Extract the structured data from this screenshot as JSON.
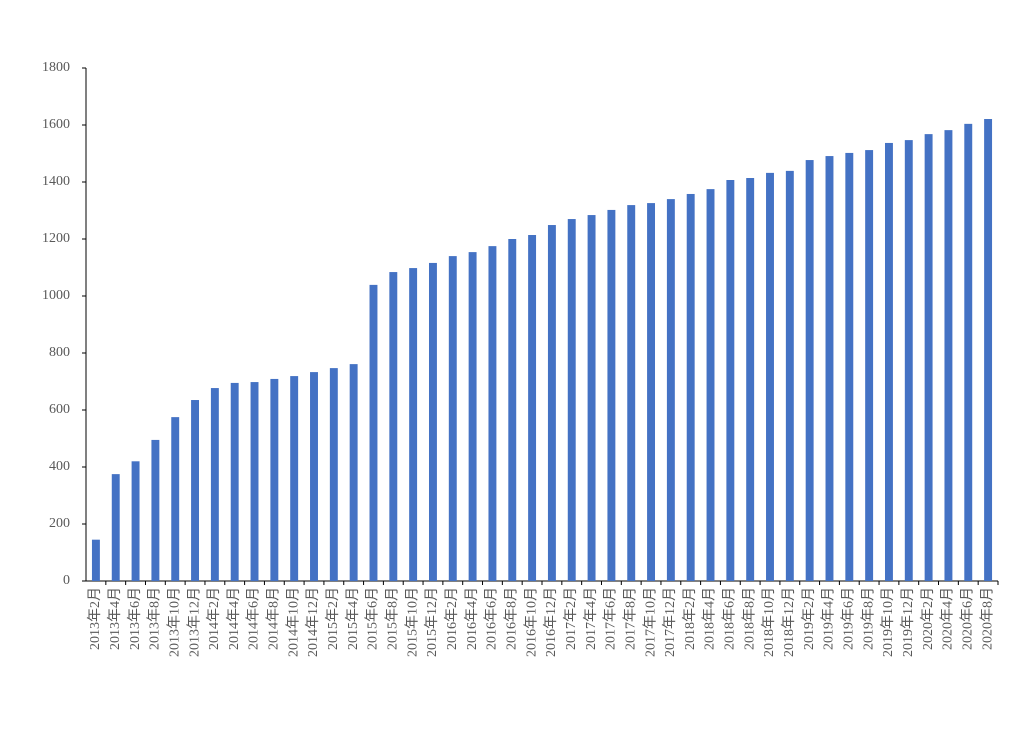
{
  "chart_data": {
    "type": "bar",
    "categories": [
      "2013年2月",
      "2013年4月",
      "2013年6月",
      "2013年8月",
      "2013年10月",
      "2013年12月",
      "2014年2月",
      "2014年4月",
      "2014年6月",
      "2014年8月",
      "2014年10月",
      "2014年12月",
      "2015年2月",
      "2015年4月",
      "2015年6月",
      "2015年8月",
      "2015年10月",
      "2015年12月",
      "2016年2月",
      "2016年4月",
      "2016年6月",
      "2016年8月",
      "2016年10月",
      "2016年12月",
      "2017年2月",
      "2017年4月",
      "2017年6月",
      "2017年8月",
      "2017年10月",
      "2017年12月",
      "2018年2月",
      "2018年4月",
      "2018年6月",
      "2018年8月",
      "2018年10月",
      "2018年12月",
      "2019年2月",
      "2019年4月",
      "2019年6月",
      "2019年8月",
      "2019年10月",
      "2019年12月",
      "2020年2月",
      "2020年4月",
      "2020年6月",
      "2020年8月"
    ],
    "values": [
      145,
      375,
      420,
      495,
      575,
      635,
      677,
      695,
      698,
      709,
      719,
      733,
      747,
      761,
      1039,
      1084,
      1098,
      1116,
      1140,
      1154,
      1175,
      1200,
      1214,
      1249,
      1270,
      1284,
      1302,
      1319,
      1326,
      1340,
      1358,
      1375,
      1407,
      1414,
      1432,
      1439,
      1477,
      1491,
      1502,
      1512,
      1537,
      1547,
      1568,
      1582,
      1604,
      1621
    ],
    "color": "#4472c4",
    "ylim": [
      0,
      1800
    ],
    "yticks": [
      0,
      200,
      400,
      600,
      800,
      1000,
      1200,
      1400,
      1600,
      1800
    ],
    "grid": false
  }
}
